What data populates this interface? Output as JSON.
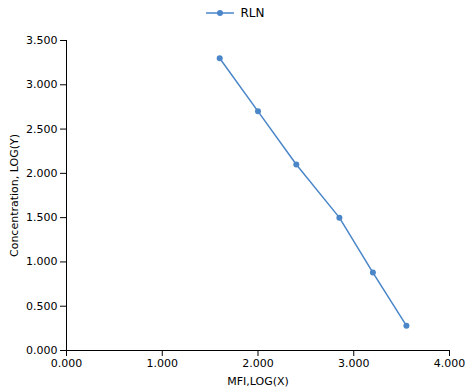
{
  "chart_data": {
    "type": "line",
    "x": [
      1.6,
      2.0,
      2.4,
      2.85,
      3.2,
      3.55
    ],
    "series": [
      {
        "name": "RLN",
        "color": "#4a86c8",
        "marker": "circle",
        "line_style": "solid",
        "values": [
          3.3,
          2.7,
          2.1,
          1.5,
          0.88,
          0.28
        ]
      }
    ],
    "xlabel": "MFI,LOG(X)",
    "ylabel": "Concentration, LOG(Y)",
    "xlim": [
      0.0,
      4.0
    ],
    "ylim": [
      0.0,
      3.5
    ],
    "xticks": [
      {
        "value": 0.0,
        "label": "0.000"
      },
      {
        "value": 1.0,
        "label": "1.000"
      },
      {
        "value": 2.0,
        "label": "2.000"
      },
      {
        "value": 3.0,
        "label": "3.000"
      },
      {
        "value": 4.0,
        "label": "4.000"
      }
    ],
    "yticks": [
      {
        "value": 0.0,
        "label": "0.000"
      },
      {
        "value": 0.5,
        "label": "0.500"
      },
      {
        "value": 1.0,
        "label": "1.000"
      },
      {
        "value": 1.5,
        "label": "1.500"
      },
      {
        "value": 2.0,
        "label": "2.000"
      },
      {
        "value": 2.5,
        "label": "2.500"
      },
      {
        "value": 3.0,
        "label": "3.000"
      },
      {
        "value": 3.5,
        "label": "3.500"
      }
    ],
    "legend": "top",
    "grid": false
  }
}
